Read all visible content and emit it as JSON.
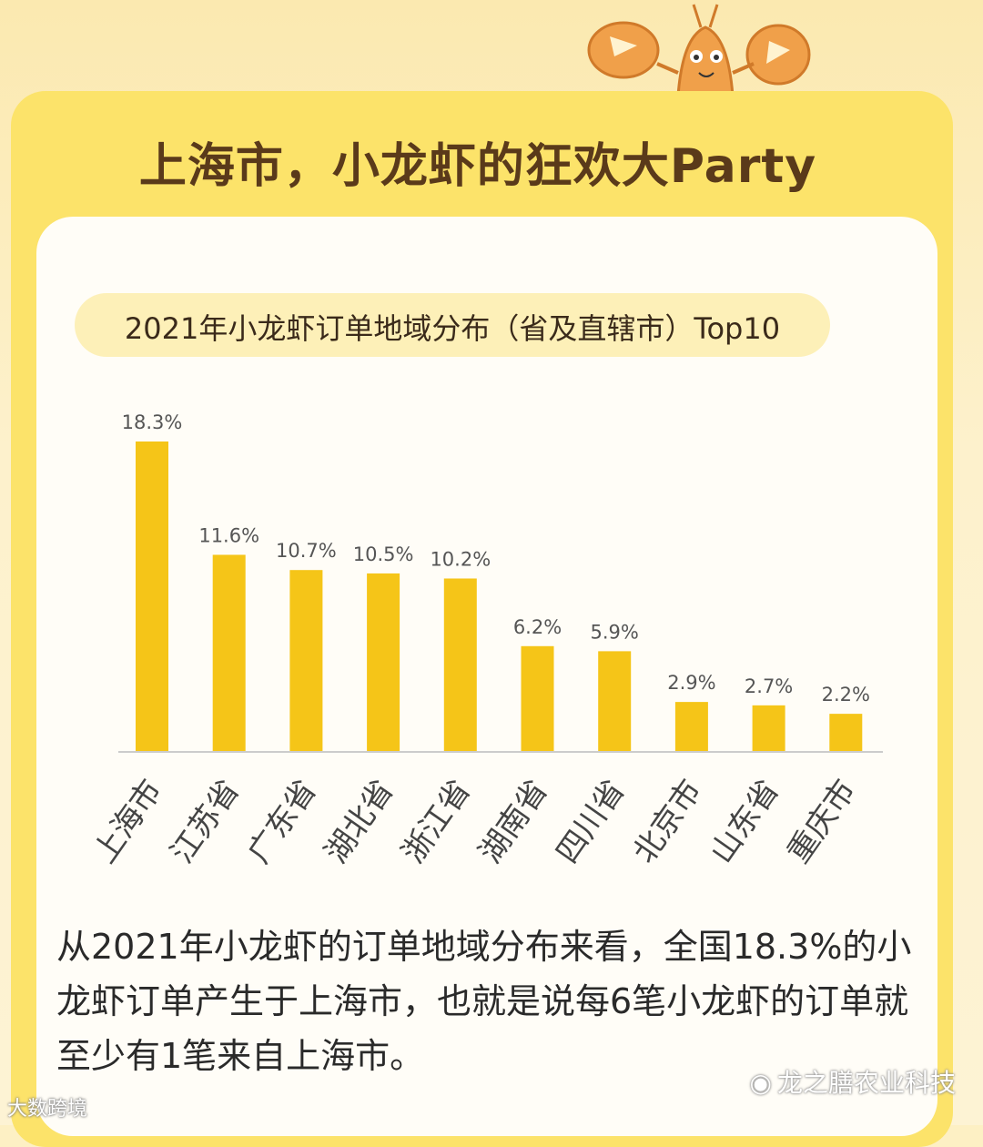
{
  "title": "上海市，小龙虾的狂欢大Party",
  "subtitle": "2021年小龙虾订单地域分布（省及直辖市）Top10",
  "description": "从2021年小龙虾的订单地域分布来看，全国18.3%的小龙虾订单产生于上海市，也就是说每6笔小龙虾的订单就至少有1笔来自上海市。",
  "watermark_right": "龙之膳农业科技",
  "watermark_left": "大数跨境",
  "colors": {
    "bar": "#f5c518",
    "axis": "#cccccc",
    "label": "#555555",
    "title": "#5a3a1a"
  },
  "chart_data": {
    "type": "bar",
    "categories": [
      "上海市",
      "江苏省",
      "广东省",
      "湖北省",
      "浙江省",
      "湖南省",
      "四川省",
      "北京市",
      "山东省",
      "重庆市"
    ],
    "values": [
      18.3,
      11.6,
      10.7,
      10.5,
      10.2,
      6.2,
      5.9,
      2.9,
      2.7,
      2.2
    ],
    "value_labels": [
      "18.3%",
      "11.6%",
      "10.7%",
      "10.5%",
      "10.2%",
      "6.2%",
      "5.9%",
      "2.9%",
      "2.7%",
      "2.2%"
    ],
    "unit": "%",
    "ylim": [
      0,
      18.3
    ],
    "grid": false,
    "legend": "none"
  }
}
